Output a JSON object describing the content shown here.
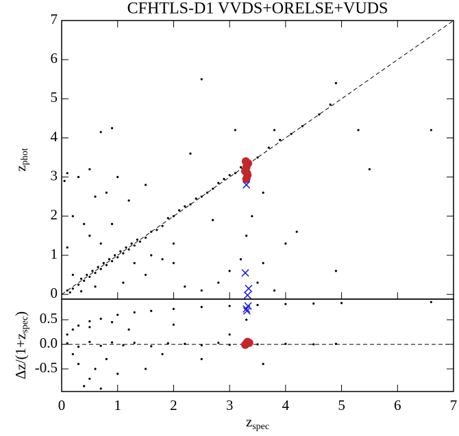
{
  "chart_data": [
    {
      "type": "scatter",
      "title": "CFHTLS-D1 VVDS+ORELSE+VUDS",
      "ylabel": [
        "z",
        "phot"
      ],
      "xlim": [
        0,
        7
      ],
      "ylim": [
        -0.12,
        7
      ],
      "yticks": [
        0,
        1,
        2,
        3,
        4,
        5,
        6,
        7
      ],
      "series": [
        {
          "color": "#000000",
          "marker": "dot",
          "x": [
            0.1,
            0.2,
            0.3,
            0.35,
            0.4,
            0.45,
            0.5,
            0.55,
            0.6,
            0.65,
            0.7,
            0.75,
            0.8,
            0.85,
            0.9,
            0.95,
            1.0,
            1.05,
            1.1,
            1.15,
            1.2,
            1.25,
            1.3,
            1.35,
            1.4,
            1.5,
            1.6,
            1.7,
            1.8,
            1.9,
            2.0,
            2.1,
            2.2,
            2.3,
            2.4,
            2.5,
            2.6,
            2.7,
            2.8,
            2.9,
            3.0,
            3.1,
            3.2,
            3.5,
            3.7,
            3.9,
            4.1,
            4.3,
            4.6,
            4.8,
            4.9,
            0.3,
            0.5,
            0.6,
            0.2,
            0.8,
            0.4,
            1.0,
            1.2,
            0.7,
            0.9,
            1.5,
            2.5,
            0.1,
            0.5,
            1.1,
            1.5,
            2.0,
            2.2,
            2.5,
            2.8,
            3.0,
            3.5,
            3.8,
            4.0,
            4.2,
            4.9,
            5.3,
            5.5,
            6.6,
            2.3,
            2.0,
            1.8,
            3.3,
            3.6,
            0.2,
            0.6,
            0.15,
            0.35,
            0.7,
            1.3,
            1.6,
            0.9,
            3.2,
            3.4,
            3.6,
            3.8,
            3.1,
            2.7,
            0.05,
            0.1
          ],
          "values": [
            0.1,
            0.15,
            0.25,
            0.4,
            0.35,
            0.5,
            0.45,
            0.6,
            0.55,
            0.7,
            0.65,
            0.8,
            0.75,
            0.9,
            0.85,
            1.0,
            0.95,
            1.1,
            1.05,
            1.2,
            1.15,
            1.3,
            1.25,
            1.4,
            1.35,
            1.45,
            1.6,
            1.65,
            1.75,
            1.95,
            2.0,
            2.15,
            2.25,
            2.3,
            2.45,
            2.5,
            2.6,
            2.7,
            2.85,
            2.95,
            3.05,
            3.1,
            3.25,
            3.5,
            3.75,
            3.95,
            4.1,
            4.3,
            4.6,
            4.85,
            5.4,
            3.0,
            3.2,
            2.5,
            2.0,
            2.6,
            1.8,
            3.0,
            2.4,
            4.15,
            4.25,
            2.8,
            5.5,
            1.2,
            1.5,
            0.3,
            0.5,
            0.8,
            0.2,
            0.1,
            0.3,
            0.6,
            0.3,
            0.1,
            1.3,
            1.6,
            0.6,
            4.2,
            3.2,
            4.2,
            3.6,
            1.3,
            0.9,
            1.5,
            0.8,
            0.5,
            0.2,
            0.05,
            0.08,
            1.3,
            0.8,
            1.0,
            1.8,
            0.9,
            2.0,
            2.6,
            4.2,
            4.2,
            1.9,
            2.9,
            3.1
          ]
        },
        {
          "color": "#c0282d",
          "marker": "circle",
          "x": [
            3.3,
            3.32,
            3.28,
            3.3,
            3.33,
            3.31,
            3.29
          ],
          "values": [
            2.95,
            3.05,
            3.15,
            3.25,
            3.35,
            3.1,
            3.4
          ]
        },
        {
          "color": "#1a1adb",
          "marker": "x",
          "x": [
            3.3,
            3.28,
            3.34,
            3.32
          ],
          "values": [
            2.8,
            0.55,
            0.15,
            -0.02
          ]
        }
      ]
    },
    {
      "type": "scatter",
      "xlabel": [
        "z",
        "spec"
      ],
      "ylabel": [
        "Δz/(1+z",
        "spec",
        ")"
      ],
      "xlim": [
        0,
        7
      ],
      "ylim": [
        -0.96,
        0.92
      ],
      "xticks": [
        0,
        1,
        2,
        3,
        4,
        5,
        6,
        7
      ],
      "yticks": [
        -0.5,
        {
          "value": 0,
          "label": "0.0"
        },
        0.5
      ],
      "series": [
        {
          "color": "#000000",
          "marker": "dot",
          "x": [
            0.1,
            0.2,
            0.3,
            0.5,
            0.7,
            1.0,
            1.3,
            1.6,
            2.0,
            2.5,
            3.0,
            3.5,
            4.0,
            4.5,
            5.0,
            6.6,
            0.1,
            0.3,
            0.5,
            0.7,
            0.9,
            1.1,
            1.3,
            1.6,
            1.9,
            2.2,
            2.5,
            2.8,
            3.0,
            3.5,
            4.0,
            4.5,
            4.9,
            0.3,
            0.5,
            0.6,
            0.4,
            0.8,
            0.2,
            1.0,
            1.2,
            0.5,
            2.0,
            2.5,
            1.5,
            0.7,
            3.3,
            3.0,
            0.9,
            1.8,
            3.6
          ],
          "values": [
            0.2,
            0.3,
            0.38,
            0.47,
            0.52,
            0.6,
            0.65,
            0.68,
            0.72,
            0.76,
            0.78,
            0.8,
            0.82,
            0.83,
            0.84,
            0.86,
            0.02,
            -0.05,
            0.05,
            -0.03,
            0.04,
            -0.02,
            0.03,
            -0.04,
            0.02,
            0.01,
            -0.02,
            0.03,
            -0.01,
            0.0,
            0.01,
            0.0,
            0.01,
            -0.4,
            -0.7,
            -0.5,
            -0.85,
            -0.3,
            -0.2,
            -0.6,
            0.3,
            0.35,
            0.4,
            -0.3,
            -0.5,
            -0.9,
            0.5,
            0.2,
            0.45,
            -0.2,
            -0.4
          ]
        },
        {
          "color": "#c0282d",
          "marker": "circle",
          "x": [
            3.3,
            3.32,
            3.28,
            3.35
          ],
          "values": [
            0.02,
            0.05,
            -0.01,
            0.03
          ]
        },
        {
          "color": "#1a1adb",
          "marker": "x",
          "x": [
            3.3,
            3.33,
            3.31
          ],
          "values": [
            0.72,
            0.78,
            0.68
          ]
        }
      ]
    }
  ]
}
